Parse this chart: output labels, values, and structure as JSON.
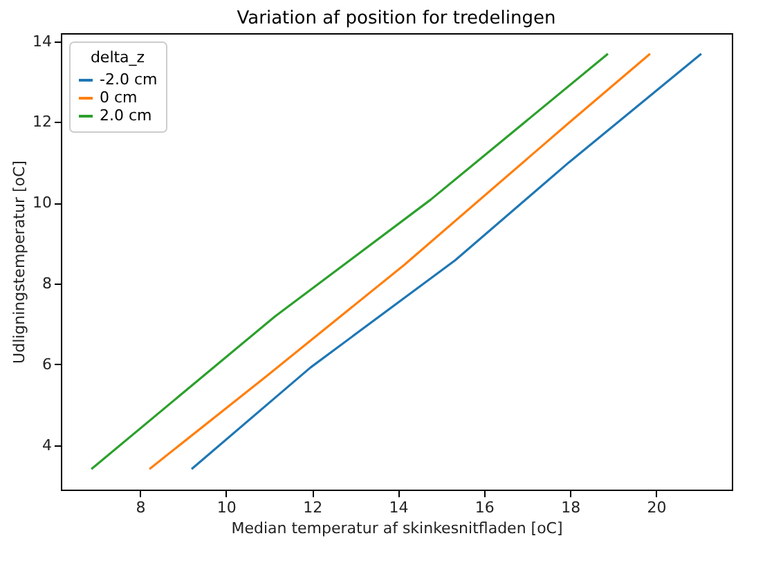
{
  "chart_data": {
    "type": "line",
    "title": "Variation af position for tredelingen",
    "xlabel": "Median temperatur af skinkesnitfladen [oC]",
    "ylabel": "Udligningstemperatur [oC]",
    "legend_title": "delta_z",
    "legend": "top left",
    "grid": false,
    "xlim": [
      6.16,
      21.76
    ],
    "xticks": [
      8,
      10,
      12,
      14,
      16,
      18,
      20
    ],
    "ylim": [
      2.9,
      14.2
    ],
    "yticks": [
      4,
      6,
      8,
      10,
      12,
      14
    ],
    "series": [
      {
        "name": "-2.0 cm",
        "color": "#1f77b4",
        "x": [
          9.2,
          11.96,
          15.33,
          17.97,
          21.05
        ],
        "values": [
          3.41,
          5.92,
          8.58,
          11.0,
          13.69
        ]
      },
      {
        "name": "0 cm",
        "color": "#ff7f0e",
        "x": [
          8.22,
          10.93,
          14.14,
          17.97,
          19.86
        ],
        "values": [
          3.41,
          5.7,
          8.46,
          11.98,
          13.69
        ]
      },
      {
        "name": "2.0 cm",
        "color": "#2ca02c",
        "x": [
          6.87,
          11.14,
          14.76,
          18.88
        ],
        "values": [
          3.41,
          7.19,
          10.08,
          13.69
        ]
      }
    ]
  }
}
